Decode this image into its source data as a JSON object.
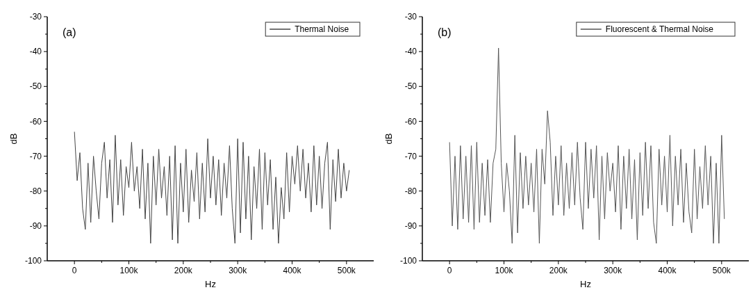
{
  "chart_data": [
    {
      "type": "line",
      "title": "(a)",
      "xlabel": "Hz",
      "ylabel": "dB",
      "xlim": [
        -50000,
        550000
      ],
      "xticks": [
        {
          "value": 0,
          "label": "0"
        },
        {
          "value": 50000,
          "label": null
        },
        {
          "value": 100000,
          "label": "100k"
        },
        {
          "value": 150000,
          "label": null
        },
        {
          "value": 200000,
          "label": "200k"
        },
        {
          "value": 250000,
          "label": null
        },
        {
          "value": 300000,
          "label": "300k"
        },
        {
          "value": 350000,
          "label": null
        },
        {
          "value": 400000,
          "label": "400k"
        },
        {
          "value": 450000,
          "label": null
        },
        {
          "value": 500000,
          "label": "500k"
        }
      ],
      "ylim": [
        -100,
        -30
      ],
      "yticks": [
        -100,
        {
          "value": -95,
          "label": null
        },
        -90,
        {
          "value": -85,
          "label": null
        },
        -80,
        {
          "value": -75,
          "label": null
        },
        -70,
        {
          "value": -65,
          "label": null
        },
        -60,
        {
          "value": -55,
          "label": null
        },
        -50,
        {
          "value": -45,
          "label": null
        },
        -40,
        {
          "value": -35,
          "label": null
        },
        -30
      ],
      "legend": "top right",
      "grid": false,
      "marker": "none",
      "line_style": "solid",
      "x": [
        0,
        5000,
        10000,
        15000,
        20000,
        25000,
        30000,
        35000,
        40000,
        45000,
        50000,
        55000,
        60000,
        65000,
        70000,
        75000,
        80000,
        85000,
        90000,
        95000,
        100000,
        105000,
        110000,
        115000,
        120000,
        125000,
        130000,
        135000,
        140000,
        145000,
        150000,
        155000,
        160000,
        165000,
        170000,
        175000,
        180000,
        185000,
        190000,
        195000,
        200000,
        205000,
        210000,
        215000,
        220000,
        225000,
        230000,
        235000,
        240000,
        245000,
        250000,
        255000,
        260000,
        265000,
        270000,
        275000,
        280000,
        285000,
        290000,
        295000,
        300000,
        305000,
        310000,
        315000,
        320000,
        325000,
        330000,
        335000,
        340000,
        345000,
        350000,
        355000,
        360000,
        365000,
        370000,
        375000,
        380000,
        385000,
        390000,
        395000,
        400000,
        405000,
        410000,
        415000,
        420000,
        425000,
        430000,
        435000,
        440000,
        445000,
        450000,
        455000,
        460000,
        465000,
        470000,
        475000,
        480000,
        485000,
        490000,
        495000,
        500000,
        505000
      ],
      "series": [
        {
          "name": "Thermal Noise",
          "color": "#444444",
          "values": [
            -63,
            -77,
            -69,
            -85,
            -91,
            -72,
            -89,
            -70,
            -80,
            -88,
            -72,
            -66,
            -82,
            -71,
            -89,
            -64,
            -84,
            -71,
            -87,
            -73,
            -79,
            -66,
            -80,
            -73,
            -85,
            -68,
            -88,
            -72,
            -95,
            -70,
            -84,
            -68,
            -82,
            -73,
            -87,
            -70,
            -94,
            -67,
            -95,
            -72,
            -86,
            -68,
            -89,
            -74,
            -83,
            -69,
            -88,
            -72,
            -86,
            -65,
            -82,
            -70,
            -84,
            -71,
            -87,
            -72,
            -82,
            -67,
            -85,
            -95,
            -65,
            -92,
            -66,
            -88,
            -70,
            -94,
            -73,
            -85,
            -68,
            -91,
            -69,
            -84,
            -71,
            -91,
            -76,
            -95,
            -79,
            -88,
            -69,
            -86,
            -70,
            -78,
            -67,
            -80,
            -68,
            -82,
            -72,
            -86,
            -67,
            -84,
            -70,
            -85,
            -72,
            -66,
            -91,
            -71,
            -83,
            -68,
            -82,
            -72,
            -80,
            -74
          ]
        }
      ]
    },
    {
      "type": "line",
      "title": "(b)",
      "xlabel": "Hz",
      "ylabel": "dB",
      "xlim": [
        -50000,
        550000
      ],
      "xticks": [
        {
          "value": 0,
          "label": "0"
        },
        {
          "value": 50000,
          "label": null
        },
        {
          "value": 100000,
          "label": "100k"
        },
        {
          "value": 150000,
          "label": null
        },
        {
          "value": 200000,
          "label": "200k"
        },
        {
          "value": 250000,
          "label": null
        },
        {
          "value": 300000,
          "label": "300k"
        },
        {
          "value": 350000,
          "label": null
        },
        {
          "value": 400000,
          "label": "400k"
        },
        {
          "value": 450000,
          "label": null
        },
        {
          "value": 500000,
          "label": "500k"
        }
      ],
      "ylim": [
        -100,
        -30
      ],
      "yticks": [
        -100,
        {
          "value": -95,
          "label": null
        },
        -90,
        {
          "value": -85,
          "label": null
        },
        -80,
        {
          "value": -75,
          "label": null
        },
        -70,
        {
          "value": -65,
          "label": null
        },
        -60,
        {
          "value": -55,
          "label": null
        },
        -50,
        {
          "value": -45,
          "label": null
        },
        -40,
        {
          "value": -35,
          "label": null
        },
        -30
      ],
      "legend": "top right",
      "grid": false,
      "marker": "none",
      "line_style": "solid",
      "x": [
        0,
        5000,
        10000,
        15000,
        20000,
        25000,
        30000,
        35000,
        40000,
        45000,
        50000,
        55000,
        60000,
        65000,
        70000,
        75000,
        80000,
        85000,
        90000,
        95000,
        100000,
        105000,
        110000,
        115000,
        120000,
        125000,
        130000,
        135000,
        140000,
        145000,
        150000,
        155000,
        160000,
        165000,
        170000,
        175000,
        180000,
        185000,
        190000,
        195000,
        200000,
        205000,
        210000,
        215000,
        220000,
        225000,
        230000,
        235000,
        240000,
        245000,
        250000,
        255000,
        260000,
        265000,
        270000,
        275000,
        280000,
        285000,
        290000,
        295000,
        300000,
        305000,
        310000,
        315000,
        320000,
        325000,
        330000,
        335000,
        340000,
        345000,
        350000,
        355000,
        360000,
        365000,
        370000,
        375000,
        380000,
        385000,
        390000,
        395000,
        400000,
        405000,
        410000,
        415000,
        420000,
        425000,
        430000,
        435000,
        440000,
        445000,
        450000,
        455000,
        460000,
        465000,
        470000,
        475000,
        480000,
        485000,
        490000,
        495000,
        500000,
        505000
      ],
      "series": [
        {
          "name": "Fluorescent & Thermal Noise",
          "color": "#555555",
          "values": [
            -66,
            -90,
            -70,
            -91,
            -67,
            -88,
            -70,
            -89,
            -67,
            -91,
            -66,
            -89,
            -72,
            -87,
            -71,
            -89,
            -72,
            -68,
            -39,
            -72,
            -86,
            -72,
            -80,
            -95,
            -64,
            -92,
            -69,
            -85,
            -70,
            -84,
            -72,
            -86,
            -68,
            -95,
            -68,
            -78,
            -57,
            -66,
            -87,
            -70,
            -84,
            -67,
            -87,
            -72,
            -85,
            -69,
            -84,
            -66,
            -82,
            -91,
            -66,
            -85,
            -68,
            -82,
            -67,
            -94,
            -70,
            -88,
            -69,
            -80,
            -72,
            -86,
            -67,
            -91,
            -70,
            -85,
            -68,
            -88,
            -71,
            -94,
            -69,
            -87,
            -66,
            -85,
            -67,
            -89,
            -95,
            -68,
            -84,
            -70,
            -86,
            -64,
            -90,
            -70,
            -84,
            -68,
            -89,
            -72,
            -86,
            -92,
            -68,
            -88,
            -73,
            -85,
            -67,
            -84,
            -70,
            -95,
            -72,
            -95,
            -64,
            -88
          ]
        }
      ]
    }
  ]
}
